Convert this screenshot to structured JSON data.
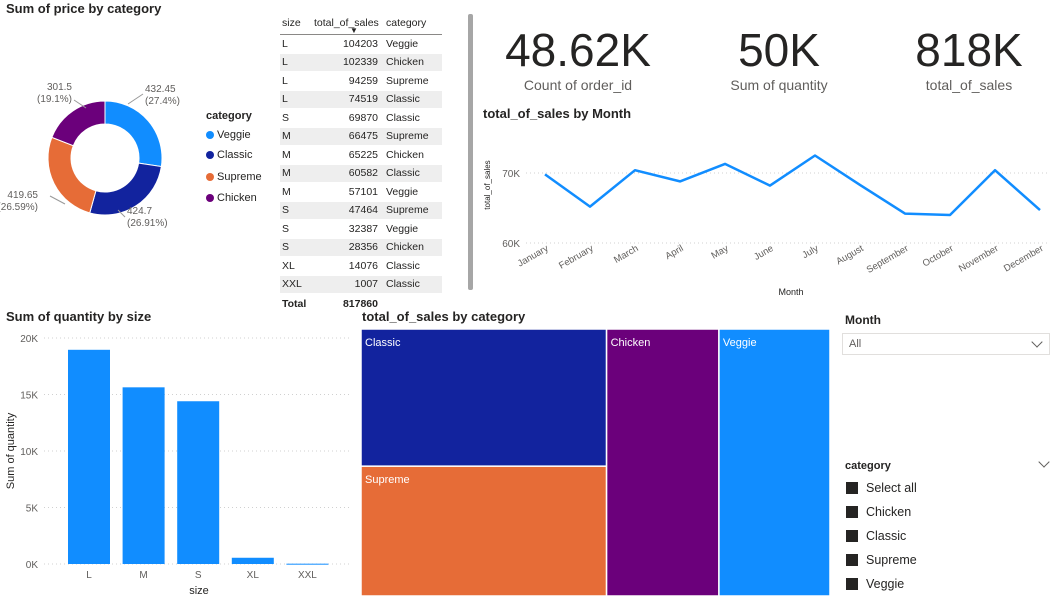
{
  "donut": {
    "title": "Sum of price by category",
    "legend_title": "category",
    "chart_data": {
      "type": "pie",
      "title": "Sum of price by category",
      "slices": [
        {
          "name": "Veggie",
          "value": 432.45,
          "label": "432.45",
          "pct": "(27.4%)",
          "color": "#118DFF"
        },
        {
          "name": "Classic",
          "value": 424.7,
          "label": "424.7",
          "pct": "(26.91%)",
          "color": "#12239E"
        },
        {
          "name": "Supreme",
          "value": 419.65,
          "label": "419.65",
          "pct": "(26.59%)",
          "color": "#E66C37"
        },
        {
          "name": "Chicken",
          "value": 301.5,
          "label": "301.5",
          "pct": "(19.1%)",
          "color": "#6B007B"
        }
      ]
    }
  },
  "table": {
    "headers": [
      "size",
      "total_of_sales",
      "category"
    ],
    "rows": [
      [
        "L",
        "104203",
        "Veggie"
      ],
      [
        "L",
        "102339",
        "Chicken"
      ],
      [
        "L",
        "94259",
        "Supreme"
      ],
      [
        "L",
        "74519",
        "Classic"
      ],
      [
        "S",
        "69870",
        "Classic"
      ],
      [
        "M",
        "66475",
        "Supreme"
      ],
      [
        "M",
        "65225",
        "Chicken"
      ],
      [
        "M",
        "60582",
        "Classic"
      ],
      [
        "M",
        "57101",
        "Veggie"
      ],
      [
        "S",
        "47464",
        "Supreme"
      ],
      [
        "S",
        "32387",
        "Veggie"
      ],
      [
        "S",
        "28356",
        "Chicken"
      ],
      [
        "XL",
        "14076",
        "Classic"
      ],
      [
        "XXL",
        "1007",
        "Classic"
      ]
    ],
    "total_label": "Total",
    "total_value": "817860"
  },
  "cards": [
    {
      "value": "48.62K",
      "label": "Count of order_id"
    },
    {
      "value": "50K",
      "label": "Sum of quantity"
    },
    {
      "value": "818K",
      "label": "total_of_sales"
    }
  ],
  "line": {
    "title": "total_of_sales by Month",
    "chart_data": {
      "type": "line",
      "title": "total_of_sales by Month",
      "xlabel": "Month",
      "ylabel": "total_of_sales",
      "categories": [
        "January",
        "February",
        "March",
        "April",
        "May",
        "June",
        "July",
        "August",
        "September",
        "October",
        "November",
        "December"
      ],
      "values": [
        69800,
        65200,
        70400,
        68800,
        71300,
        68200,
        72500,
        68300,
        64200,
        64000,
        70400,
        64700
      ],
      "yticks": [
        "70K",
        "60K"
      ],
      "ytick_values": [
        70000,
        60000
      ],
      "ylim": [
        60000,
        74000
      ],
      "color": "#118DFF"
    }
  },
  "bar": {
    "title": "Sum of quantity by size",
    "chart_data": {
      "type": "bar",
      "title": "Sum of quantity by size",
      "xlabel": "size",
      "ylabel": "Sum of quantity",
      "categories": [
        "L",
        "M",
        "S",
        "XL",
        "XXL"
      ],
      "values": [
        18956,
        15635,
        14403,
        552,
        28
      ],
      "yticks": [
        "20K",
        "15K",
        "10K",
        "5K",
        "0K"
      ],
      "ytick_values": [
        20000,
        15000,
        10000,
        5000,
        0
      ],
      "ylim": [
        0,
        20000
      ],
      "color": "#118DFF"
    }
  },
  "treemap": {
    "title": "total_of_sales by category",
    "chart_data": {
      "type": "treemap",
      "title": "total_of_sales by category",
      "items": [
        {
          "name": "Classic",
          "value": 220053,
          "color": "#12239E"
        },
        {
          "name": "Supreme",
          "value": 208198,
          "color": "#E66C37"
        },
        {
          "name": "Chicken",
          "value": 195920,
          "color": "#6B007B"
        },
        {
          "name": "Veggie",
          "value": 193691,
          "color": "#118DFF"
        }
      ]
    }
  },
  "month_slicer": {
    "title": "Month",
    "value": "All"
  },
  "category_slicer": {
    "title": "category",
    "options": [
      "Select all",
      "Chicken",
      "Classic",
      "Supreme",
      "Veggie"
    ]
  }
}
